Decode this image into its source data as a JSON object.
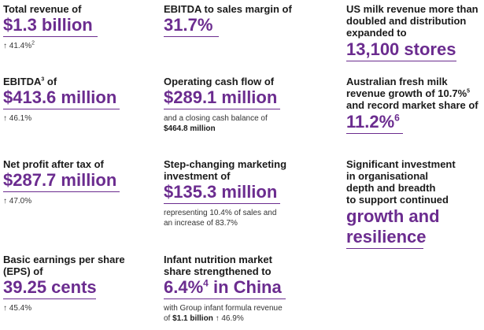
{
  "colors": {
    "accent": "#6b2c8f",
    "text": "#1a1a1a"
  },
  "col1": [
    {
      "head": "Total revenue of",
      "value": "$1.3 billion",
      "growth": "41.4%",
      "growth_sup": "2"
    },
    {
      "head": "EBITDA",
      "head_sup": "3",
      "head2": " of",
      "value": "$413.6 million",
      "growth": "46.1%"
    },
    {
      "head": "Net profit after tax of",
      "value": "$287.7 million",
      "growth": "47.0%"
    },
    {
      "head_line1": "Basic earnings per share",
      "head_line2": "(EPS) of",
      "value": "39.25 cents",
      "growth": "45.4%"
    }
  ],
  "col2": {
    "ebitda_margin": {
      "head": "EBITDA to sales margin of",
      "value": "31.7%"
    },
    "cash_flow": {
      "head": "Operating cash flow of",
      "value": "$289.1 million",
      "note_line1": "and a closing cash balance of",
      "note_bold": "$464.8 million"
    },
    "marketing": {
      "head_line1": "Step-changing marketing",
      "head_line2": "investment of",
      "value": "$135.3 million",
      "note_line1": "representing 10.4% of sales and",
      "note_line2": "an increase of 83.7%"
    },
    "infant": {
      "head_line1": "Infant nutrition market",
      "head_line2": "share strengthened to",
      "value_main": "6.4%",
      "value_sup": "4",
      "value_tail": " in China",
      "note_line1": "with Group infant formula revenue",
      "note_line2_pre": "of ",
      "note_line2_bold": "$1.1 billion",
      "note_line2_post": "46.9%"
    }
  },
  "col3": {
    "us_milk": {
      "head_line1": "US milk revenue more than",
      "head_line2": "doubled and distribution",
      "head_line3": "expanded to",
      "value": "13,100 stores"
    },
    "aus_milk": {
      "head_line1": "Australian fresh milk",
      "head_line2": "revenue growth of 10.7%",
      "head_line2_sup": "5",
      "head_line3": "and record market share of",
      "value": "11.2%",
      "value_sup": "6"
    },
    "investment": {
      "head_line1": "Significant investment",
      "head_line2": "in organisational",
      "head_line3": "depth and breadth",
      "head_line4": "to support continued",
      "value_line1": "growth and",
      "value_line2": "resilience"
    }
  },
  "arrow_glyph": "↑"
}
